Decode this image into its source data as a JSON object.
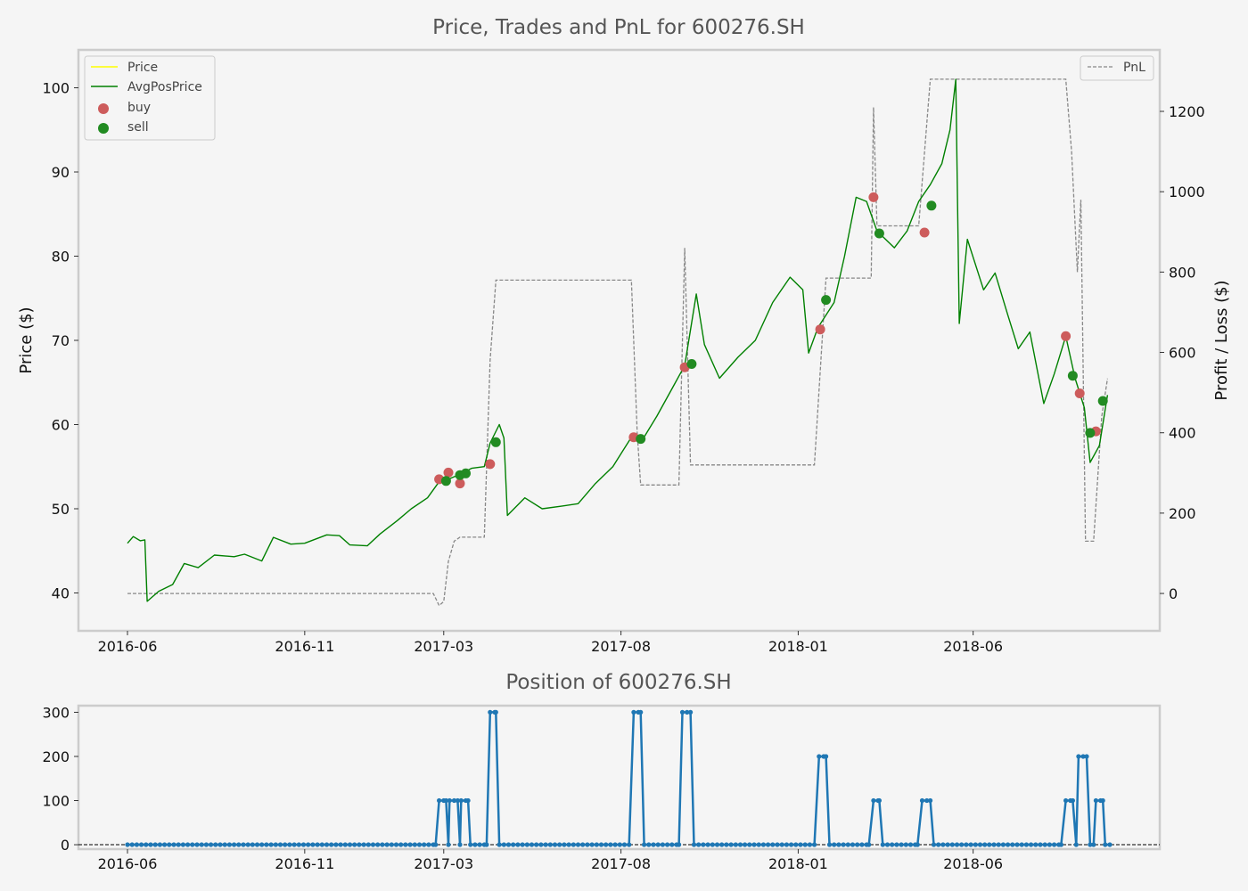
{
  "colors": {
    "background": "#f5f5f5",
    "frame": "#cccccc",
    "price": "#ffff00",
    "avgposprice": "#008000",
    "buy": "#cd5c5c",
    "sell": "#228b22",
    "pnl": "#888888",
    "position": "#1f77b4"
  },
  "chart_data": [
    {
      "type": "line",
      "title": "Price, Trades and PnL for 600276.SH",
      "xlabel": "",
      "ylabel": "Price ($)",
      "y2label": "Profit / Loss ($)",
      "ylim": [
        35.5,
        104.5
      ],
      "y2lim": [
        -93,
        1353
      ],
      "x_ticks": [
        "2016-06",
        "2016-11",
        "2017-03",
        "2017-08",
        "2018-01",
        "2018-06"
      ],
      "y_ticks": [
        40,
        50,
        60,
        70,
        80,
        90,
        100
      ],
      "y2_ticks": [
        0,
        200,
        400,
        600,
        800,
        1000,
        1200
      ],
      "grid": false,
      "legend_left": {
        "placement": "top-left",
        "entries": [
          "Price",
          "AvgPosPrice",
          "buy",
          "sell"
        ]
      },
      "legend_right": {
        "placement": "top-right",
        "entries": [
          "PnL"
        ]
      },
      "series": [
        {
          "name": "AvgPosPrice",
          "style": "solid",
          "points": [
            [
              "2016-06-01",
              45.9
            ],
            [
              "2016-06-06",
              46.7
            ],
            [
              "2016-06-12",
              46.2
            ],
            [
              "2016-06-16",
              46.3
            ],
            [
              "2016-06-18",
              39.0
            ],
            [
              "2016-06-28",
              40.2
            ],
            [
              "2016-07-10",
              41.0
            ],
            [
              "2016-07-20",
              43.5
            ],
            [
              "2016-08-01",
              43.0
            ],
            [
              "2016-08-15",
              44.5
            ],
            [
              "2016-09-01",
              44.3
            ],
            [
              "2016-09-10",
              44.6
            ],
            [
              "2016-09-25",
              43.8
            ],
            [
              "2016-10-05",
              46.6
            ],
            [
              "2016-10-20",
              45.8
            ],
            [
              "2016-11-01",
              45.9
            ],
            [
              "2016-11-20",
              46.9
            ],
            [
              "2016-12-01",
              46.8
            ],
            [
              "2016-12-10",
              45.7
            ],
            [
              "2016-12-25",
              45.6
            ],
            [
              "2017-01-05",
              47.0
            ],
            [
              "2017-01-20",
              48.6
            ],
            [
              "2017-02-01",
              50.0
            ],
            [
              "2017-02-15",
              51.3
            ],
            [
              "2017-02-25",
              53.2
            ],
            [
              "2017-03-05",
              53.5
            ],
            [
              "2017-03-15",
              54.1
            ],
            [
              "2017-03-25",
              54.8
            ],
            [
              "2017-04-05",
              55.0
            ],
            [
              "2017-04-10",
              57.8
            ],
            [
              "2017-04-18",
              60.0
            ],
            [
              "2017-04-22",
              58.4
            ],
            [
              "2017-04-25",
              49.2
            ],
            [
              "2017-05-10",
              51.3
            ],
            [
              "2017-05-25",
              50.0
            ],
            [
              "2017-06-10",
              50.3
            ],
            [
              "2017-06-25",
              50.6
            ],
            [
              "2017-07-10",
              53.0
            ],
            [
              "2017-07-25",
              55.0
            ],
            [
              "2017-08-10",
              58.5
            ],
            [
              "2017-08-20",
              58.3
            ],
            [
              "2017-09-01",
              61.0
            ],
            [
              "2017-09-15",
              64.5
            ],
            [
              "2017-09-25",
              67.0
            ],
            [
              "2017-10-05",
              75.5
            ],
            [
              "2017-10-12",
              69.5
            ],
            [
              "2017-10-25",
              65.5
            ],
            [
              "2017-11-10",
              68.0
            ],
            [
              "2017-11-25",
              70.0
            ],
            [
              "2017-12-10",
              74.5
            ],
            [
              "2017-12-25",
              77.5
            ],
            [
              "2018-01-05",
              76.0
            ],
            [
              "2018-01-10",
              68.5
            ],
            [
              "2018-01-18",
              71.5
            ],
            [
              "2018-02-01",
              74.5
            ],
            [
              "2018-02-10",
              80.0
            ],
            [
              "2018-02-20",
              87.0
            ],
            [
              "2018-03-01",
              86.5
            ],
            [
              "2018-03-10",
              83.0
            ],
            [
              "2018-03-25",
              81.0
            ],
            [
              "2018-04-05",
              83.0
            ],
            [
              "2018-04-15",
              86.5
            ],
            [
              "2018-04-25",
              88.5
            ],
            [
              "2018-05-05",
              91.0
            ],
            [
              "2018-05-12",
              95.0
            ],
            [
              "2018-05-17",
              101.0
            ],
            [
              "2018-05-20",
              72.0
            ],
            [
              "2018-05-27",
              82.0
            ],
            [
              "2018-06-10",
              76.0
            ],
            [
              "2018-06-20",
              78.0
            ],
            [
              "2018-07-01",
              73.0
            ],
            [
              "2018-07-10",
              69.0
            ],
            [
              "2018-07-20",
              71.0
            ],
            [
              "2018-08-01",
              62.5
            ],
            [
              "2018-08-10",
              66.0
            ],
            [
              "2018-08-20",
              70.5
            ],
            [
              "2018-08-28",
              65.5
            ],
            [
              "2018-09-05",
              62.0
            ],
            [
              "2018-09-10",
              55.5
            ],
            [
              "2018-09-18",
              57.5
            ],
            [
              "2018-09-25",
              63.5
            ]
          ]
        },
        {
          "name": "PnL",
          "style": "dashed",
          "points": [
            [
              "2016-06-01",
              0
            ],
            [
              "2017-02-20",
              0
            ],
            [
              "2017-02-25",
              -30
            ],
            [
              "2017-03-01",
              -20
            ],
            [
              "2017-03-05",
              80
            ],
            [
              "2017-03-10",
              130
            ],
            [
              "2017-03-15",
              140
            ],
            [
              "2017-04-05",
              140
            ],
            [
              "2017-04-10",
              580
            ],
            [
              "2017-04-15",
              780
            ],
            [
              "2017-08-10",
              780
            ],
            [
              "2017-08-15",
              400
            ],
            [
              "2017-08-18",
              270
            ],
            [
              "2017-09-20",
              270
            ],
            [
              "2017-09-25",
              860
            ],
            [
              "2017-09-30",
              320
            ],
            [
              "2018-01-15",
              320
            ],
            [
              "2018-01-25",
              785
            ],
            [
              "2018-03-05",
              785
            ],
            [
              "2018-03-07",
              1210
            ],
            [
              "2018-03-10",
              915
            ],
            [
              "2018-04-15",
              915
            ],
            [
              "2018-04-25",
              1280
            ],
            [
              "2018-08-20",
              1280
            ],
            [
              "2018-08-25",
              1100
            ],
            [
              "2018-08-30",
              800
            ],
            [
              "2018-09-02",
              980
            ],
            [
              "2018-09-06",
              130
            ],
            [
              "2018-09-13",
              130
            ],
            [
              "2018-09-20",
              440
            ],
            [
              "2018-09-25",
              535
            ]
          ]
        }
      ],
      "buy": [
        {
          "x": "2017-02-25",
          "y": 53.5
        },
        {
          "x": "2017-03-05",
          "y": 54.3
        },
        {
          "x": "2017-03-15",
          "y": 53.0
        },
        {
          "x": "2017-04-10",
          "y": 55.3
        },
        {
          "x": "2017-08-12",
          "y": 58.5
        },
        {
          "x": "2017-09-25",
          "y": 66.8
        },
        {
          "x": "2018-01-20",
          "y": 71.3
        },
        {
          "x": "2018-03-07",
          "y": 87.0
        },
        {
          "x": "2018-04-20",
          "y": 82.8
        },
        {
          "x": "2018-08-20",
          "y": 70.5
        },
        {
          "x": "2018-09-01",
          "y": 63.7
        },
        {
          "x": "2018-09-15",
          "y": 59.2
        }
      ],
      "sell": [
        {
          "x": "2017-03-03",
          "y": 53.3
        },
        {
          "x": "2017-03-15",
          "y": 54.0
        },
        {
          "x": "2017-03-20",
          "y": 54.2
        },
        {
          "x": "2017-04-15",
          "y": 57.9
        },
        {
          "x": "2017-08-18",
          "y": 58.3
        },
        {
          "x": "2017-10-01",
          "y": 67.2
        },
        {
          "x": "2018-01-25",
          "y": 74.8
        },
        {
          "x": "2018-03-12",
          "y": 82.7
        },
        {
          "x": "2018-04-26",
          "y": 86.0
        },
        {
          "x": "2018-08-26",
          "y": 65.8
        },
        {
          "x": "2018-09-10",
          "y": 59.0
        },
        {
          "x": "2018-09-21",
          "y": 62.8
        }
      ]
    },
    {
      "type": "line",
      "title": "Position of 600276.SH",
      "xlabel": "",
      "ylabel": "",
      "ylim": [
        -10,
        315
      ],
      "x_ticks": [
        "2016-06",
        "2016-11",
        "2017-03",
        "2017-08",
        "2018-01",
        "2018-06"
      ],
      "y_ticks": [
        0,
        100,
        200,
        300
      ],
      "baseline": 0,
      "series": [
        {
          "name": "Position",
          "style": "solid-with-markers",
          "points": [
            [
              "2016-06-01",
              0
            ],
            [
              "2017-02-22",
              0
            ],
            [
              "2017-02-25",
              100
            ],
            [
              "2017-03-03",
              100
            ],
            [
              "2017-03-05",
              0
            ],
            [
              "2017-03-06",
              100
            ],
            [
              "2017-03-13",
              100
            ],
            [
              "2017-03-15",
              0
            ],
            [
              "2017-03-16",
              100
            ],
            [
              "2017-03-22",
              100
            ],
            [
              "2017-03-24",
              0
            ],
            [
              "2017-04-07",
              0
            ],
            [
              "2017-04-10",
              300
            ],
            [
              "2017-04-15",
              300
            ],
            [
              "2017-04-18",
              0
            ],
            [
              "2017-08-08",
              0
            ],
            [
              "2017-08-12",
              300
            ],
            [
              "2017-08-18",
              300
            ],
            [
              "2017-08-21",
              0
            ],
            [
              "2017-09-20",
              0
            ],
            [
              "2017-09-23",
              300
            ],
            [
              "2017-09-30",
              300
            ],
            [
              "2017-10-03",
              0
            ],
            [
              "2018-01-15",
              0
            ],
            [
              "2018-01-19",
              200
            ],
            [
              "2018-01-25",
              200
            ],
            [
              "2018-01-28",
              0
            ],
            [
              "2018-03-03",
              0
            ],
            [
              "2018-03-07",
              100
            ],
            [
              "2018-03-12",
              100
            ],
            [
              "2018-03-15",
              0
            ],
            [
              "2018-04-14",
              0
            ],
            [
              "2018-04-18",
              100
            ],
            [
              "2018-04-25",
              100
            ],
            [
              "2018-04-28",
              0
            ],
            [
              "2018-08-16",
              0
            ],
            [
              "2018-08-20",
              100
            ],
            [
              "2018-08-26",
              100
            ],
            [
              "2018-08-29",
              0
            ],
            [
              "2018-08-31",
              200
            ],
            [
              "2018-09-07",
              200
            ],
            [
              "2018-09-10",
              0
            ],
            [
              "2018-09-13",
              0
            ],
            [
              "2018-09-15",
              100
            ],
            [
              "2018-09-21",
              100
            ],
            [
              "2018-09-23",
              0
            ],
            [
              "2018-09-27",
              0
            ]
          ]
        }
      ]
    }
  ]
}
